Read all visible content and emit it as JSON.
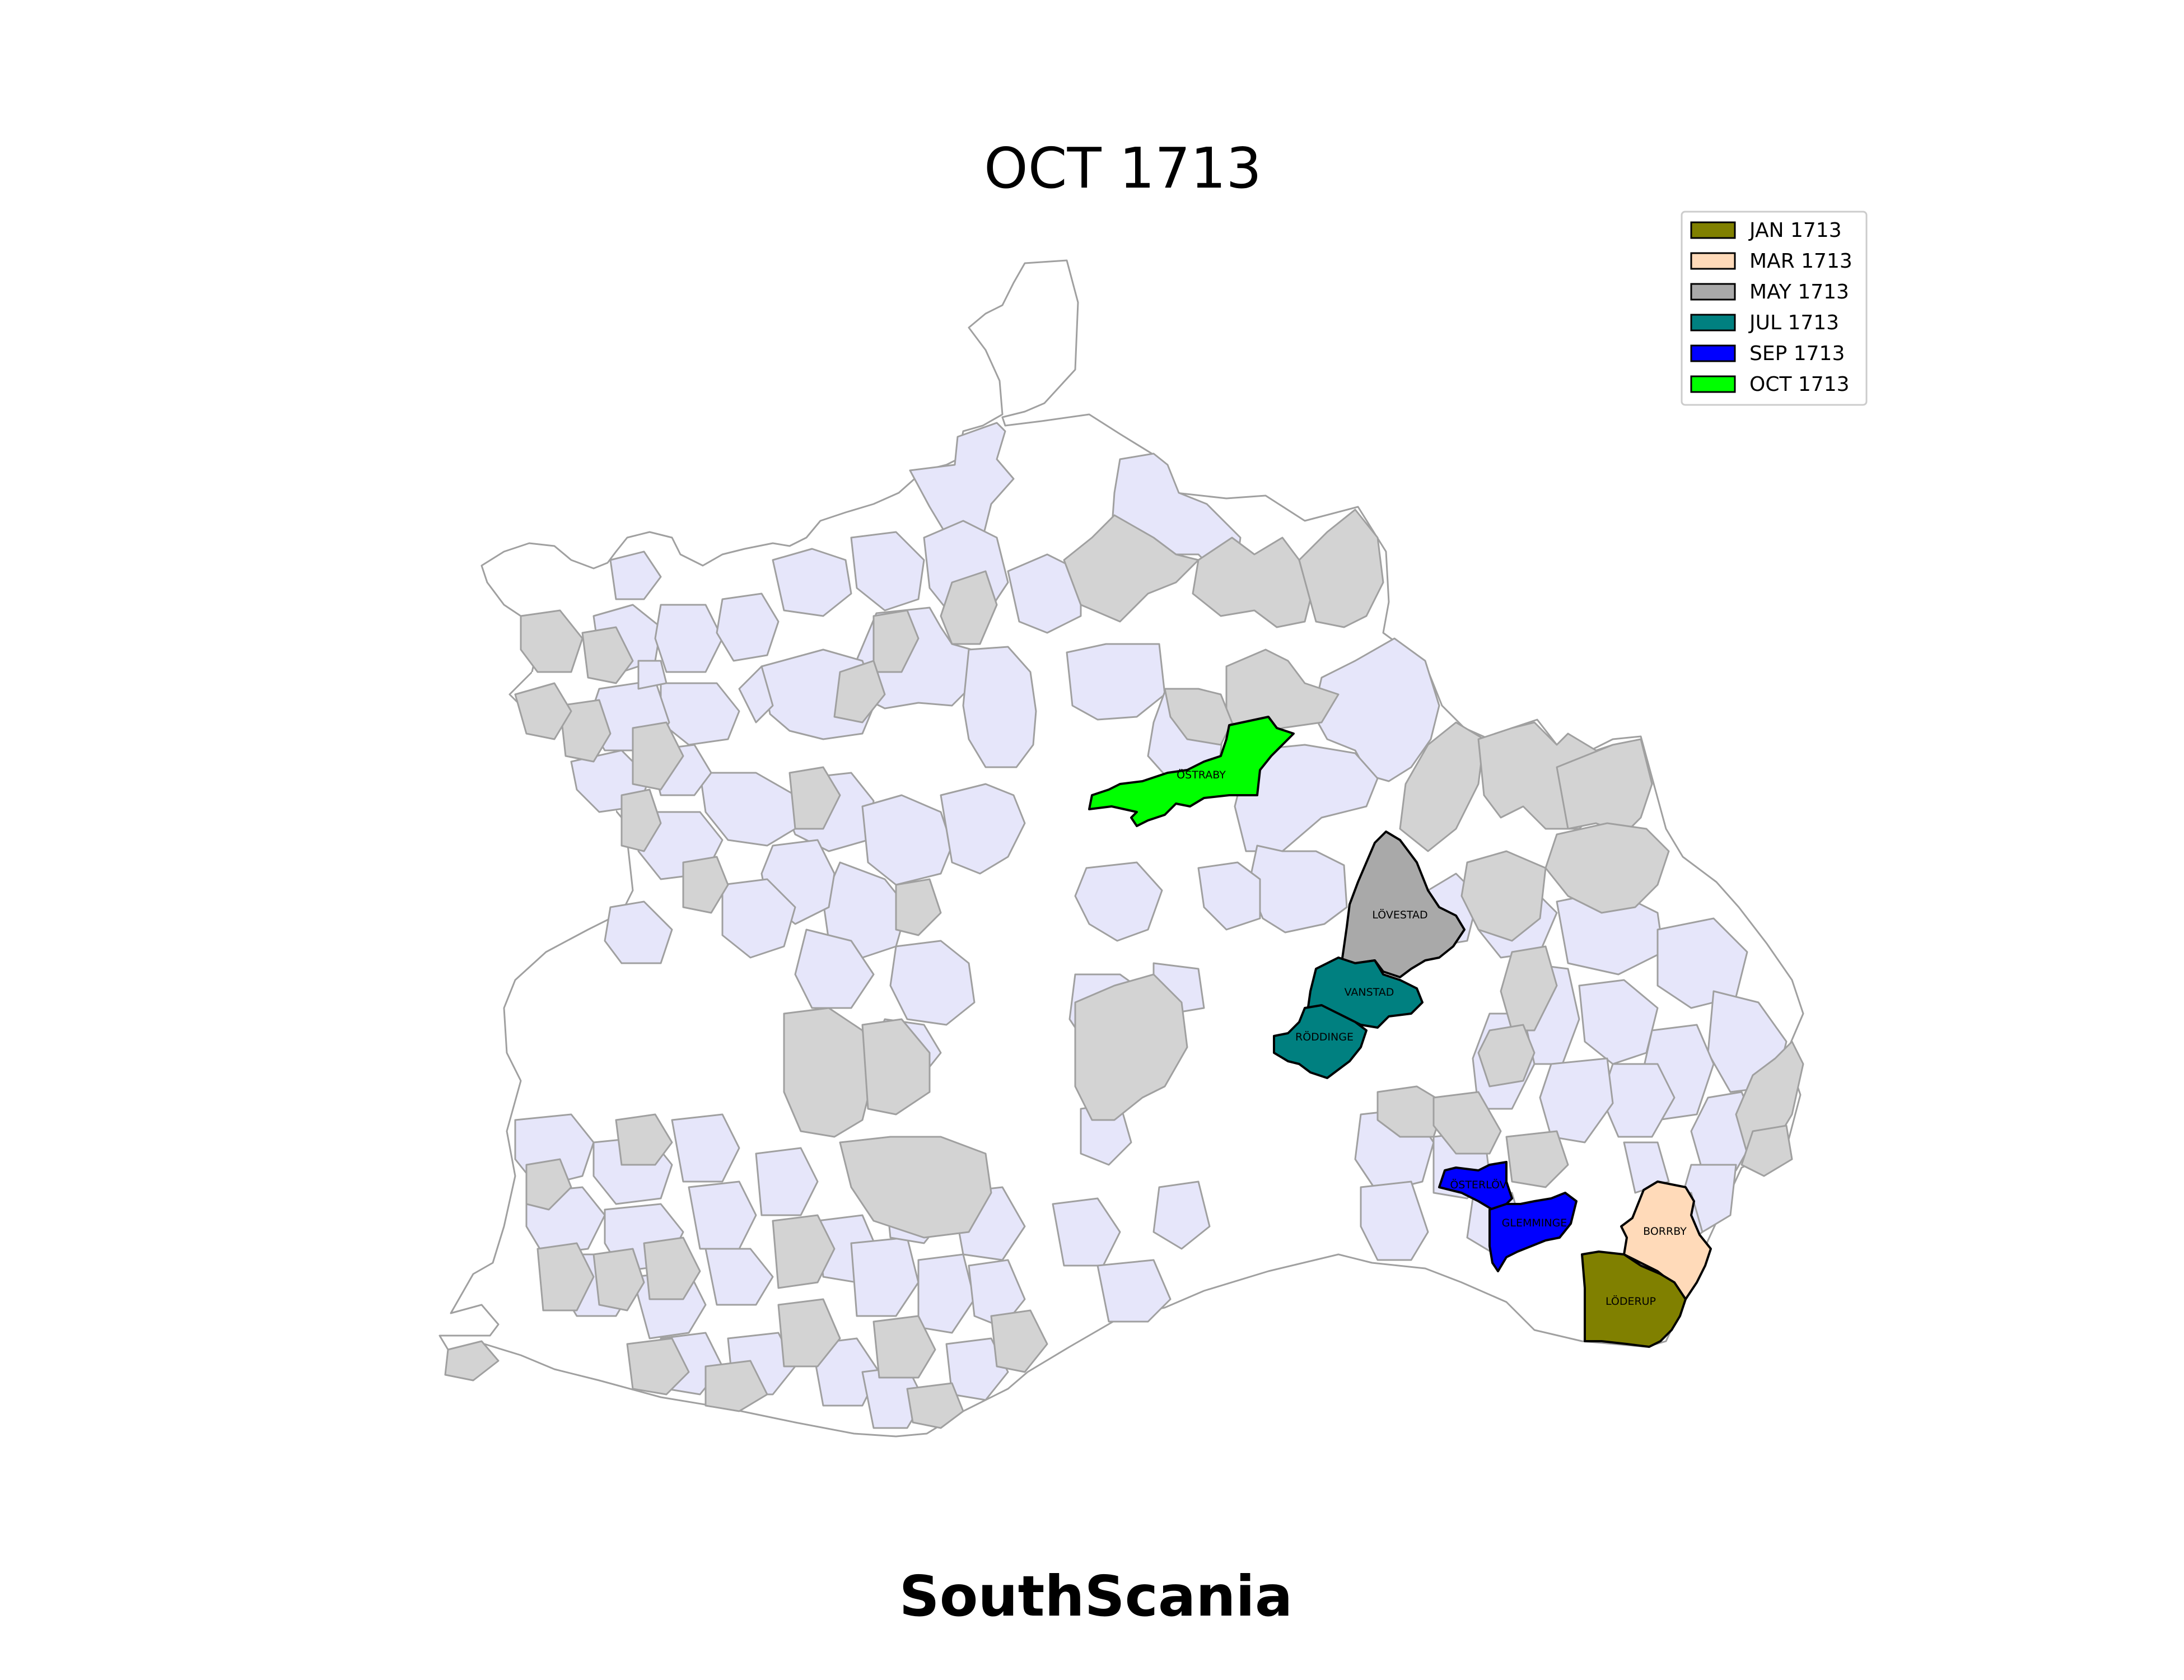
{
  "title": "OCT 1713",
  "region_name": "SouthScania",
  "colors": {
    "background_parish": "#ffffff",
    "pale_parish": "#e6e6fa",
    "gray_parish": "#d3d3d3",
    "border": "#a0a0a0",
    "highlight_border": "#000000"
  },
  "legend": [
    {
      "label": "JAN 1713",
      "color": "#808000"
    },
    {
      "label": "MAR 1713",
      "color": "#ffdab9"
    },
    {
      "label": "MAY 1713",
      "color": "#a9a9a9"
    },
    {
      "label": "JUL 1713",
      "color": "#008080"
    },
    {
      "label": "SEP 1713",
      "color": "#0000ff"
    },
    {
      "label": "OCT 1713",
      "color": "#00ff00"
    }
  ],
  "parishes": [
    {
      "name": "ÖSTRABY",
      "period": "OCT 1713"
    },
    {
      "name": "LÖVESTAD",
      "period": "MAY 1713"
    },
    {
      "name": "VANSTAD",
      "period": "JUL 1713"
    },
    {
      "name": "RÖDDINGE",
      "period": "JUL 1713"
    },
    {
      "name": "ÖSTERLÖV",
      "period": "SEP 1713"
    },
    {
      "name": "GLEMMINGE",
      "period": "SEP 1713"
    },
    {
      "name": "BORRBY",
      "period": "MAR 1713"
    },
    {
      "name": "LÖDERUP",
      "period": "JAN 1713"
    }
  ]
}
